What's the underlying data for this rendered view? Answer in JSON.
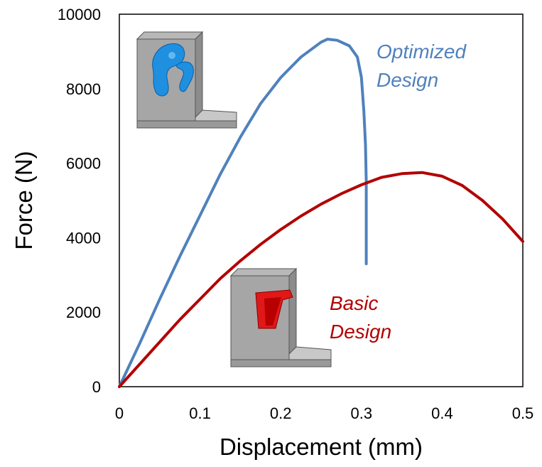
{
  "chart_data": {
    "type": "line",
    "xlabel": "Displacement (mm)",
    "ylabel": "Force (N)",
    "xlim": [
      0,
      0.5
    ],
    "ylim": [
      0,
      10000
    ],
    "x_ticks": [
      "0",
      "0.1",
      "0.2",
      "0.3",
      "0.4",
      "0.5"
    ],
    "y_ticks": [
      "0",
      "2000",
      "4000",
      "6000",
      "8000",
      "10000"
    ],
    "grid": false,
    "legend": "none",
    "series": [
      {
        "name": "Optimized Design",
        "color": "#4f81bd",
        "points": [
          [
            0,
            0
          ],
          [
            0.025,
            1150
          ],
          [
            0.05,
            2350
          ],
          [
            0.075,
            3500
          ],
          [
            0.1,
            4600
          ],
          [
            0.125,
            5700
          ],
          [
            0.15,
            6700
          ],
          [
            0.175,
            7600
          ],
          [
            0.2,
            8300
          ],
          [
            0.225,
            8850
          ],
          [
            0.25,
            9250
          ],
          [
            0.258,
            9330
          ],
          [
            0.27,
            9300
          ],
          [
            0.285,
            9150
          ],
          [
            0.295,
            8850
          ],
          [
            0.3,
            8300
          ],
          [
            0.303,
            7400
          ],
          [
            0.305,
            6500
          ],
          [
            0.306,
            5500
          ],
          [
            0.306,
            4500
          ],
          [
            0.306,
            3300
          ]
        ]
      },
      {
        "name": "Basic Design",
        "color": "#b30000",
        "points": [
          [
            0,
            0
          ],
          [
            0.025,
            600
          ],
          [
            0.05,
            1200
          ],
          [
            0.075,
            1800
          ],
          [
            0.1,
            2350
          ],
          [
            0.125,
            2900
          ],
          [
            0.15,
            3380
          ],
          [
            0.175,
            3820
          ],
          [
            0.2,
            4220
          ],
          [
            0.225,
            4580
          ],
          [
            0.25,
            4900
          ],
          [
            0.275,
            5180
          ],
          [
            0.3,
            5420
          ],
          [
            0.325,
            5620
          ],
          [
            0.35,
            5720
          ],
          [
            0.375,
            5750
          ],
          [
            0.4,
            5650
          ],
          [
            0.425,
            5400
          ],
          [
            0.45,
            5000
          ],
          [
            0.475,
            4500
          ],
          [
            0.5,
            3900
          ]
        ]
      }
    ],
    "annotations": [
      {
        "id": "optimized",
        "lines": [
          "Optimized",
          "Design"
        ],
        "color": "#4f81bd"
      },
      {
        "id": "basic",
        "lines": [
          "Basic",
          "Design"
        ],
        "color": "#b30000"
      }
    ]
  }
}
